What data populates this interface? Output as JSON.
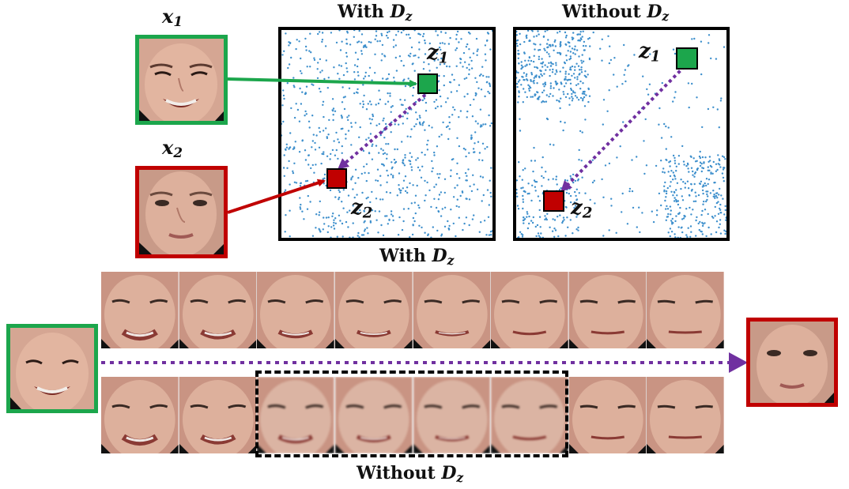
{
  "labels": {
    "x1": "x",
    "x1_sub": "1",
    "x2": "x",
    "x2_sub": "2",
    "with_prefix": "With ",
    "without_prefix": "Without ",
    "d": "D",
    "d_sub": "z",
    "z1": "z",
    "z1_sub": "1",
    "z2": "z",
    "z2_sub": "2"
  },
  "colors": {
    "green": "#1ca64c",
    "red": "#c00000",
    "purple": "#7030a0",
    "scatter": "#3d8fcc"
  },
  "strip_frames": 8,
  "dashed_box_frames": [
    3,
    6
  ]
}
